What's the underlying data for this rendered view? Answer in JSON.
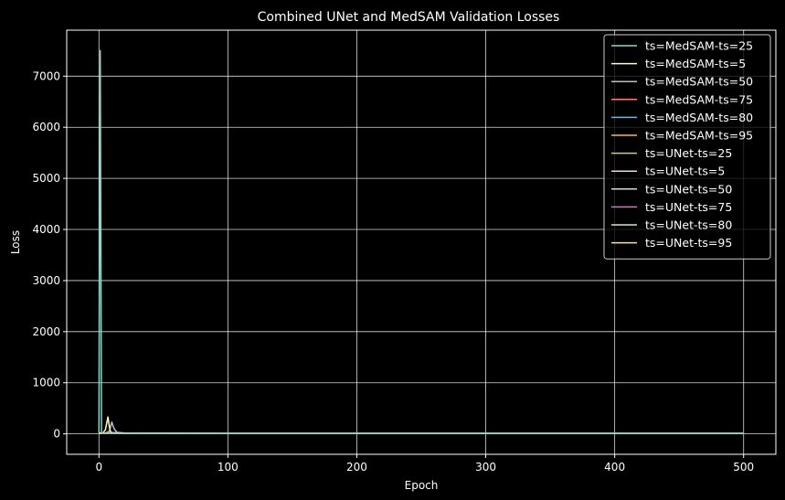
{
  "chart_data": {
    "type": "line",
    "title": "Combined UNet and MedSAM Validation Losses",
    "xlabel": "Epoch",
    "ylabel": "Loss",
    "xlim": [
      -25,
      525
    ],
    "ylim": [
      -400,
      7900
    ],
    "xticks": [
      0,
      100,
      200,
      300,
      400,
      500
    ],
    "yticks": [
      0,
      1000,
      2000,
      3000,
      4000,
      5000,
      6000,
      7000
    ],
    "grid": true,
    "legend_position": "top-right",
    "background": "#000000",
    "series": [
      {
        "name": "ts=MedSAM-ts=25",
        "color": "#8dd3c7",
        "x": [
          0,
          1,
          2,
          3,
          5,
          10,
          20,
          50,
          100,
          500
        ],
        "y": [
          30,
          7500,
          20,
          14,
          12,
          11,
          10,
          10,
          10,
          10
        ]
      },
      {
        "name": "ts=MedSAM-ts=5",
        "color": "#ffffb3",
        "x": [
          0,
          3,
          5,
          7,
          8,
          9,
          10,
          15,
          20,
          100,
          500
        ],
        "y": [
          20,
          15,
          80,
          330,
          150,
          40,
          25,
          15,
          12,
          10,
          10
        ]
      },
      {
        "name": "ts=MedSAM-ts=50",
        "color": "#bebada",
        "x": [
          0,
          5,
          8,
          10,
          11,
          12,
          14,
          20,
          100,
          500
        ],
        "y": [
          15,
          14,
          50,
          230,
          150,
          90,
          30,
          15,
          12,
          12
        ]
      },
      {
        "name": "ts=MedSAM-ts=75",
        "color": "#fb8072",
        "x": [
          0,
          5,
          10,
          20,
          100,
          500
        ],
        "y": [
          12,
          10,
          9,
          8,
          8,
          8
        ]
      },
      {
        "name": "ts=MedSAM-ts=80",
        "color": "#80b1d3",
        "x": [
          0,
          5,
          10,
          20,
          100,
          500
        ],
        "y": [
          12,
          10,
          9,
          8,
          8,
          8
        ]
      },
      {
        "name": "ts=MedSAM-ts=95",
        "color": "#fdb462",
        "x": [
          0,
          5,
          10,
          20,
          100,
          500
        ],
        "y": [
          10,
          9,
          8,
          7,
          7,
          7
        ]
      },
      {
        "name": "ts=UNet-ts=25",
        "color": "#b3de69",
        "x": [
          0,
          5,
          10,
          20,
          100,
          500
        ],
        "y": [
          14,
          12,
          10,
          9,
          8,
          8
        ]
      },
      {
        "name": "ts=UNet-ts=5",
        "color": "#fccde5",
        "x": [
          0,
          5,
          10,
          20,
          100,
          500
        ],
        "y": [
          14,
          12,
          10,
          9,
          8,
          8
        ]
      },
      {
        "name": "ts=UNet-ts=50",
        "color": "#d9d9d9",
        "x": [
          0,
          5,
          10,
          20,
          100,
          500
        ],
        "y": [
          12,
          10,
          9,
          8,
          8,
          8
        ]
      },
      {
        "name": "ts=UNet-ts=75",
        "color": "#bc80bd",
        "x": [
          0,
          5,
          10,
          20,
          100,
          500
        ],
        "y": [
          10,
          9,
          8,
          7,
          7,
          7
        ]
      },
      {
        "name": "ts=UNet-ts=80",
        "color": "#ccebc5",
        "x": [
          0,
          5,
          10,
          20,
          100,
          500
        ],
        "y": [
          10,
          9,
          8,
          7,
          7,
          7
        ]
      },
      {
        "name": "ts=UNet-ts=95",
        "color": "#ffed6f",
        "x": [
          0,
          5,
          10,
          20,
          100,
          500
        ],
        "y": [
          10,
          9,
          8,
          7,
          7,
          7
        ]
      }
    ]
  }
}
